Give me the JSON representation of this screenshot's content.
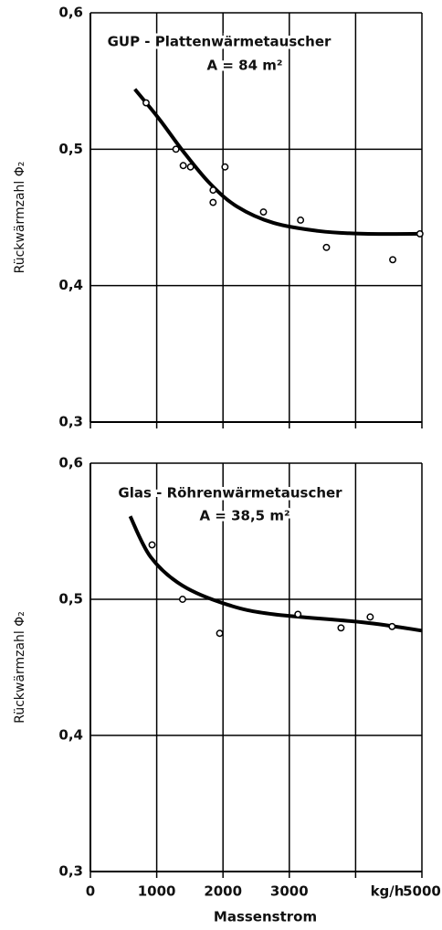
{
  "chart_data": [
    {
      "type": "scatter",
      "annotations": [
        "GUP - Plattenwärmetauscher",
        "A = 84 m²"
      ],
      "ylabel": "Rückwärmzahl Φ₂",
      "x": [
        840,
        1290,
        1400,
        1510,
        1850,
        1850,
        2030,
        2610,
        3170,
        3560,
        4560,
        4970
      ],
      "values": [
        0.534,
        0.5,
        0.488,
        0.487,
        0.47,
        0.461,
        0.487,
        0.454,
        0.448,
        0.428,
        0.419,
        0.438
      ],
      "fit": {
        "x": [
          670,
          1040,
          1390,
          1800,
          2210,
          2760,
          3450,
          4130,
          5000
        ],
        "values": [
          0.544,
          0.522,
          0.499,
          0.475,
          0.458,
          0.446,
          0.44,
          0.438,
          0.438
        ]
      },
      "color": "#000000",
      "xlim": [
        0,
        5000
      ],
      "ylim": [
        0.3,
        0.6
      ],
      "xticks": [
        {
          "value": 0,
          "label": null
        },
        {
          "value": 1000,
          "label": null
        },
        {
          "value": 2000,
          "label": null
        },
        {
          "value": 3000,
          "label": null
        },
        {
          "value": 4000,
          "label": null
        },
        {
          "value": 5000,
          "label": null
        }
      ],
      "yticks": [
        {
          "value": 0.3,
          "label": "0,3"
        },
        {
          "value": 0.4,
          "label": "0,4"
        },
        {
          "value": 0.5,
          "label": "0,5"
        },
        {
          "value": 0.6,
          "label": "0,6"
        }
      ],
      "grid": true
    },
    {
      "type": "scatter",
      "annotations": [
        "Glas - Röhrenwärmetauscher",
        "A = 38,5 m²"
      ],
      "ylabel": "Rückwärmzahl Φ₂",
      "xlabel": "Massenstrom",
      "xunit": "kg/h",
      "x": [
        930,
        1390,
        1950,
        3130,
        3780,
        4220,
        4550
      ],
      "values": [
        0.54,
        0.5,
        0.475,
        0.489,
        0.479,
        0.487,
        0.48
      ],
      "fit": {
        "x": [
          600,
          910,
          1390,
          2070,
          2760,
          4130,
          5000
        ],
        "values": [
          0.561,
          0.531,
          0.51,
          0.496,
          0.489,
          0.483,
          0.477
        ]
      },
      "color": "#000000",
      "xlim": [
        0,
        5000
      ],
      "ylim": [
        0.3,
        0.6
      ],
      "xticks": [
        0,
        1000,
        2000,
        3000,
        {
          "value": 4000,
          "label": null
        },
        5000
      ],
      "yticks": [
        {
          "value": 0.3,
          "label": "0,3"
        },
        {
          "value": 0.4,
          "label": "0,4"
        },
        {
          "value": 0.5,
          "label": "0,5"
        },
        {
          "value": 0.6,
          "label": "0,6"
        }
      ],
      "grid": true
    }
  ]
}
